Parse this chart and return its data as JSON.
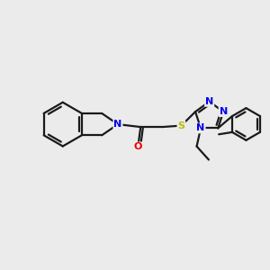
{
  "bg_color": "#ebebeb",
  "bond_color": "#1a1a1a",
  "N_color": "#0000ee",
  "O_color": "#ee0000",
  "S_color": "#bbbb00",
  "font_size": 8.0,
  "bond_width": 1.6,
  "figsize": [
    3.0,
    3.0
  ],
  "dpi": 100,
  "xlim": [
    0,
    10
  ],
  "ylim": [
    0,
    10
  ]
}
